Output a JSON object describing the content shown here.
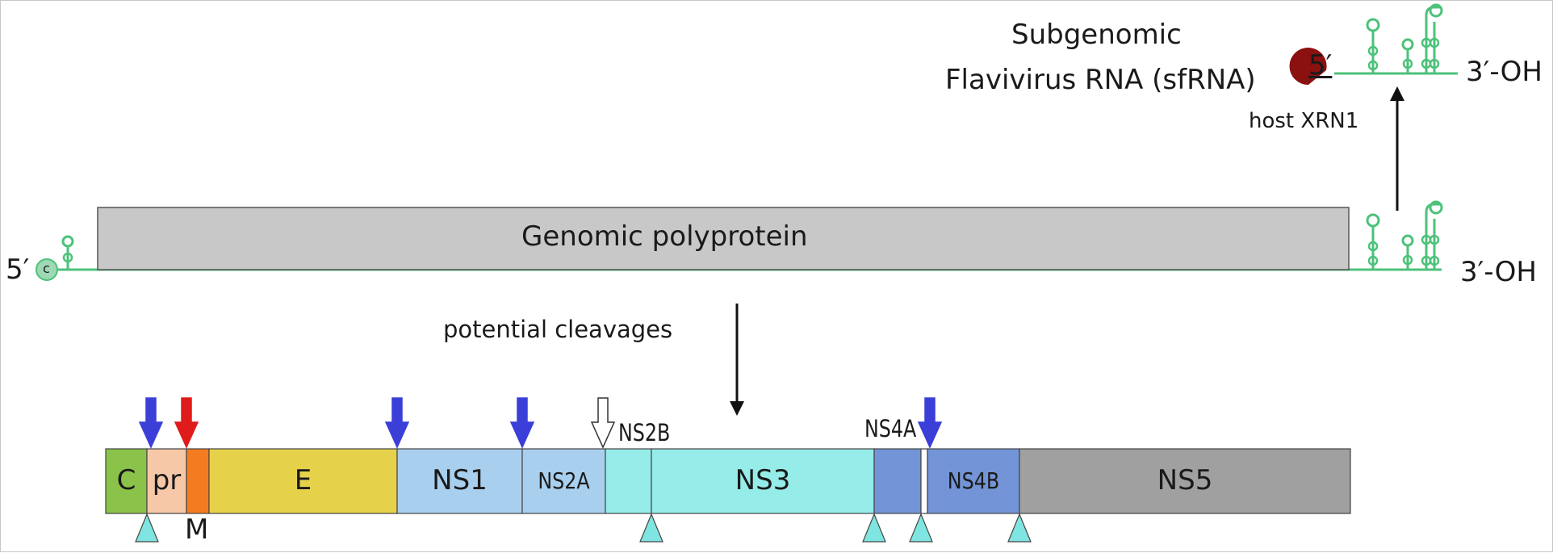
{
  "sfrna": {
    "title_line1": "Subgenomic",
    "title_line2": "Flavivirus RNA (sfRNA)",
    "five_prime": "5′",
    "three_prime": "3′-OH",
    "enzyme_label": "host XRN1"
  },
  "genome": {
    "five_prime": "5′",
    "cap_label": "c",
    "polyprotein_label": "Genomic polyprotein",
    "three_prime": "3′-OH"
  },
  "cleavage": {
    "label": "potential cleavages"
  },
  "polyprotein": {
    "segments": [
      {
        "id": "C",
        "label": "C",
        "color": "#8bc34a"
      },
      {
        "id": "pr",
        "label": "pr",
        "color": "#f6c8a8"
      },
      {
        "id": "M",
        "label": "",
        "color": "#f47c20"
      },
      {
        "id": "E",
        "label": "E",
        "color": "#e5d24a"
      },
      {
        "id": "NS1",
        "label": "NS1",
        "color": "#a9cfee"
      },
      {
        "id": "NS2A",
        "label": "NS2A",
        "color": "#a9cfee"
      },
      {
        "id": "NS2B",
        "label": "",
        "color": "#96ece8"
      },
      {
        "id": "NS3",
        "label": "NS3",
        "color": "#96ece8"
      },
      {
        "id": "NS4A",
        "label": "",
        "color": "#7394d6"
      },
      {
        "id": "2K",
        "label": "",
        "color": "#ffffff"
      },
      {
        "id": "NS4B",
        "label": "NS4B",
        "color": "#7394d6"
      },
      {
        "id": "NS5",
        "label": "NS5",
        "color": "#a0a0a0"
      }
    ],
    "outside_labels": {
      "M": "M",
      "NS2B": "NS2B",
      "NS4A": "NS4A"
    },
    "arrow_colors": {
      "host_signalase": "#3b3fd8",
      "furin": "#e01b1b",
      "unknown": "#ffffff"
    },
    "triangle_color": "#7fe5e0"
  },
  "colors": {
    "rna": "#4cc27a",
    "genome_box": "#c8c8c8",
    "xrn1": "#8b1010"
  }
}
